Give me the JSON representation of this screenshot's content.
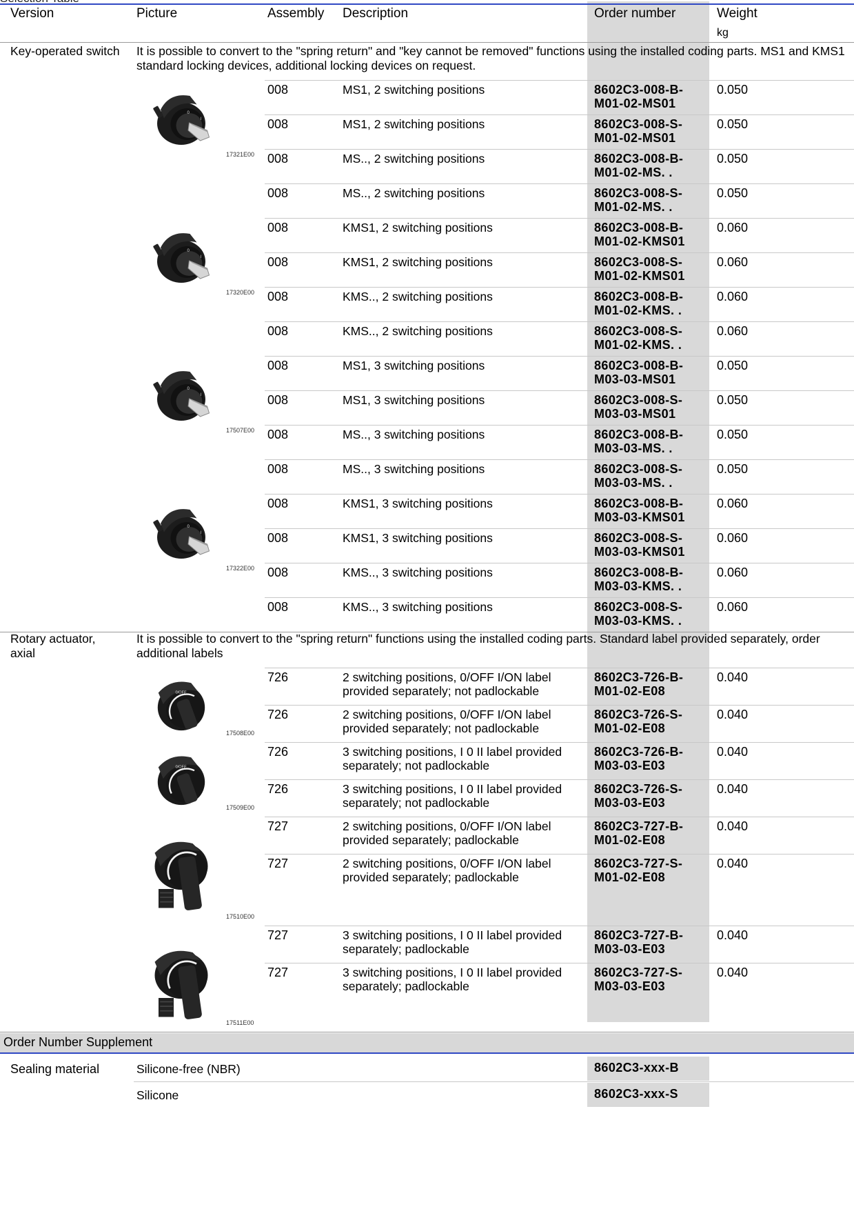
{
  "table_title": "Selection Table",
  "headers": {
    "version": "Version",
    "picture": "Picture",
    "assembly": "Assembly",
    "description": "Description",
    "order_number": "Order number",
    "weight": "Weight",
    "weight_unit": "kg"
  },
  "sections": [
    {
      "version": "Key-operated switch",
      "note": "It is possible to convert to the \"spring return\" and \"key cannot be removed\" functions using the installed coding parts. MS1 and KMS1 standard locking devices, additional locking devices on request.",
      "groups": [
        {
          "picture": {
            "caption": "17321E00",
            "icon": "key-switch-2-position-icon"
          },
          "rows": [
            {
              "assembly": "008",
              "description": "MS1, 2 switching positions",
              "order": "8602C3-008-B-\nM01-02-MS01",
              "weight": "0.050"
            },
            {
              "assembly": "008",
              "description": "MS1, 2 switching positions",
              "order": "8602C3-008-S-\nM01-02-MS01",
              "weight": "0.050"
            },
            {
              "assembly": "008",
              "description": "MS.., 2 switching positions",
              "order": "8602C3-008-B-\nM01-02-MS. .",
              "weight": "0.050"
            },
            {
              "assembly": "008",
              "description": "MS.., 2 switching positions",
              "order": "8602C3-008-S-\nM01-02-MS. .",
              "weight": "0.050"
            }
          ]
        },
        {
          "picture": {
            "caption": "17320E00",
            "icon": "key-switch-2-position-icon"
          },
          "rows": [
            {
              "assembly": "008",
              "description": "KMS1, 2 switching positions",
              "order": "8602C3-008-B-\nM01-02-KMS01",
              "weight": "0.060"
            },
            {
              "assembly": "008",
              "description": "KMS1, 2 switching positions",
              "order": "8602C3-008-S-\nM01-02-KMS01",
              "weight": "0.060"
            },
            {
              "assembly": "008",
              "description": "KMS.., 2 switching positions",
              "order": "8602C3-008-B-\nM01-02-KMS. .",
              "weight": "0.060"
            },
            {
              "assembly": "008",
              "description": "KMS.., 2 switching positions",
              "order": "8602C3-008-S-\nM01-02-KMS. .",
              "weight": "0.060"
            }
          ]
        },
        {
          "picture": {
            "caption": "17507E00",
            "icon": "key-switch-3-position-icon"
          },
          "rows": [
            {
              "assembly": "008",
              "description": "MS1, 3 switching positions",
              "order": "8602C3-008-B-\nM03-03-MS01",
              "weight": "0.050"
            },
            {
              "assembly": "008",
              "description": "MS1, 3 switching positions",
              "order": "8602C3-008-S-\nM03-03-MS01",
              "weight": "0.050"
            },
            {
              "assembly": "008",
              "description": "MS.., 3 switching positions",
              "order": "8602C3-008-B-\nM03-03-MS. .",
              "weight": "0.050"
            },
            {
              "assembly": "008",
              "description": "MS.., 3 switching positions",
              "order": "8602C3-008-S-\nM03-03-MS. .",
              "weight": "0.050"
            }
          ]
        },
        {
          "picture": {
            "caption": "17322E00",
            "icon": "key-switch-3-position-icon"
          },
          "rows": [
            {
              "assembly": "008",
              "description": "KMS1, 3 switching positions",
              "order": "8602C3-008-B-\nM03-03-KMS01",
              "weight": "0.060"
            },
            {
              "assembly": "008",
              "description": "KMS1, 3 switching positions",
              "order": "8602C3-008-S-\nM03-03-KMS01",
              "weight": "0.060"
            },
            {
              "assembly": "008",
              "description": "KMS.., 3 switching positions",
              "order": "8602C3-008-B-\nM03-03-KMS. .",
              "weight": "0.060"
            },
            {
              "assembly": "008",
              "description": "KMS.., 3 switching positions",
              "order": "8602C3-008-S-\nM03-03-KMS. .",
              "weight": "0.060"
            }
          ]
        }
      ]
    },
    {
      "version": "Rotary actuator, axial",
      "note": "It is possible to convert to the \"spring return\" functions using the installed coding parts. Standard label provided separately, order additional labels",
      "groups": [
        {
          "picture": {
            "caption": "17508E00",
            "icon": "rotary-actuator-icon"
          },
          "rows": [
            {
              "assembly": "726",
              "description": "2 switching positions, 0/OFF I/ON label\nprovided separately; not padlockable",
              "order": "8602C3-726-B-\nM01-02-E08",
              "weight": "0.040"
            },
            {
              "assembly": "726",
              "description": "2 switching positions, 0/OFF I/ON label\nprovided separately; not padlockable",
              "order": "8602C3-726-S-\nM01-02-E08",
              "weight": "0.040"
            }
          ]
        },
        {
          "picture": {
            "caption": "17509E00",
            "icon": "rotary-actuator-icon"
          },
          "rows": [
            {
              "assembly": "726",
              "description": "3 switching positions, I 0 II label provided\nseparately; not padlockable",
              "order": "8602C3-726-B-\nM03-03-E03",
              "weight": "0.040"
            },
            {
              "assembly": "726",
              "description": "3 switching positions, I 0 II label provided\nseparately; not padlockable",
              "order": "8602C3-726-S-\nM03-03-E03",
              "weight": "0.040"
            }
          ]
        },
        {
          "picture": {
            "caption": "17510E00",
            "icon": "padlockable-rotary-actuator-icon"
          },
          "rows": [
            {
              "assembly": "727",
              "description": "2 switching positions, 0/OFF I/ON label\nprovided separately; padlockable",
              "order": "8602C3-727-B-\nM01-02-E08",
              "weight": "0.040"
            },
            {
              "assembly": "727",
              "description": "2 switching positions, 0/OFF I/ON label\nprovided separately; padlockable",
              "order": "8602C3-727-S-\nM01-02-E08",
              "weight": "0.040"
            }
          ]
        },
        {
          "picture": {
            "caption": "17511E00",
            "icon": "padlockable-rotary-actuator-icon"
          },
          "rows": [
            {
              "assembly": "727",
              "description": "3 switching positions, I 0 II label provided\nseparately; padlockable",
              "order": "8602C3-727-B-\nM03-03-E03",
              "weight": "0.040"
            },
            {
              "assembly": "727",
              "description": "3 switching positions, I 0 II label provided\nseparately; padlockable",
              "order": "8602C3-727-S-\nM03-03-E03",
              "weight": "0.040"
            }
          ]
        }
      ]
    }
  ],
  "supplement": {
    "title": "Order Number Supplement",
    "label": "Sealing material",
    "rows": [
      {
        "description": "Silicone-free (NBR)",
        "order": "8602C3-xxx-B"
      },
      {
        "description": "Silicone",
        "order": "8602C3-xxx-S"
      }
    ]
  },
  "colors": {
    "rule": "#2f48c4",
    "order_bg": "#d9d9d9",
    "band": "#d8d8d8"
  }
}
